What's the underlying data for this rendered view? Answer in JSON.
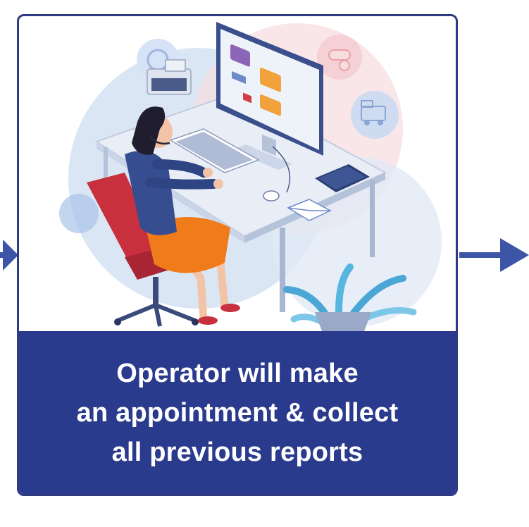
{
  "caption": {
    "lines": [
      "Operator will make",
      "an appointment & collect",
      "all previous reports"
    ]
  },
  "colors": {
    "frame": "#2e3a82",
    "band": "#2a3a8c",
    "arrow": "#3d55a6",
    "chair": "#c8303e",
    "skirt": "#f07b1a",
    "desk": "#e8edf6",
    "blob": "#dbe6f5",
    "pink_blob": "#f6dde0"
  },
  "icons": [
    "left-arrow-icon",
    "right-arrow-icon",
    "headset-icon",
    "monitor-icon",
    "keyboard-icon",
    "mouse-icon",
    "envelope-icon",
    "notebook-icon",
    "printer-icon",
    "pill-icon",
    "ambulance-icon",
    "plant-icon",
    "office-chair-icon"
  ]
}
